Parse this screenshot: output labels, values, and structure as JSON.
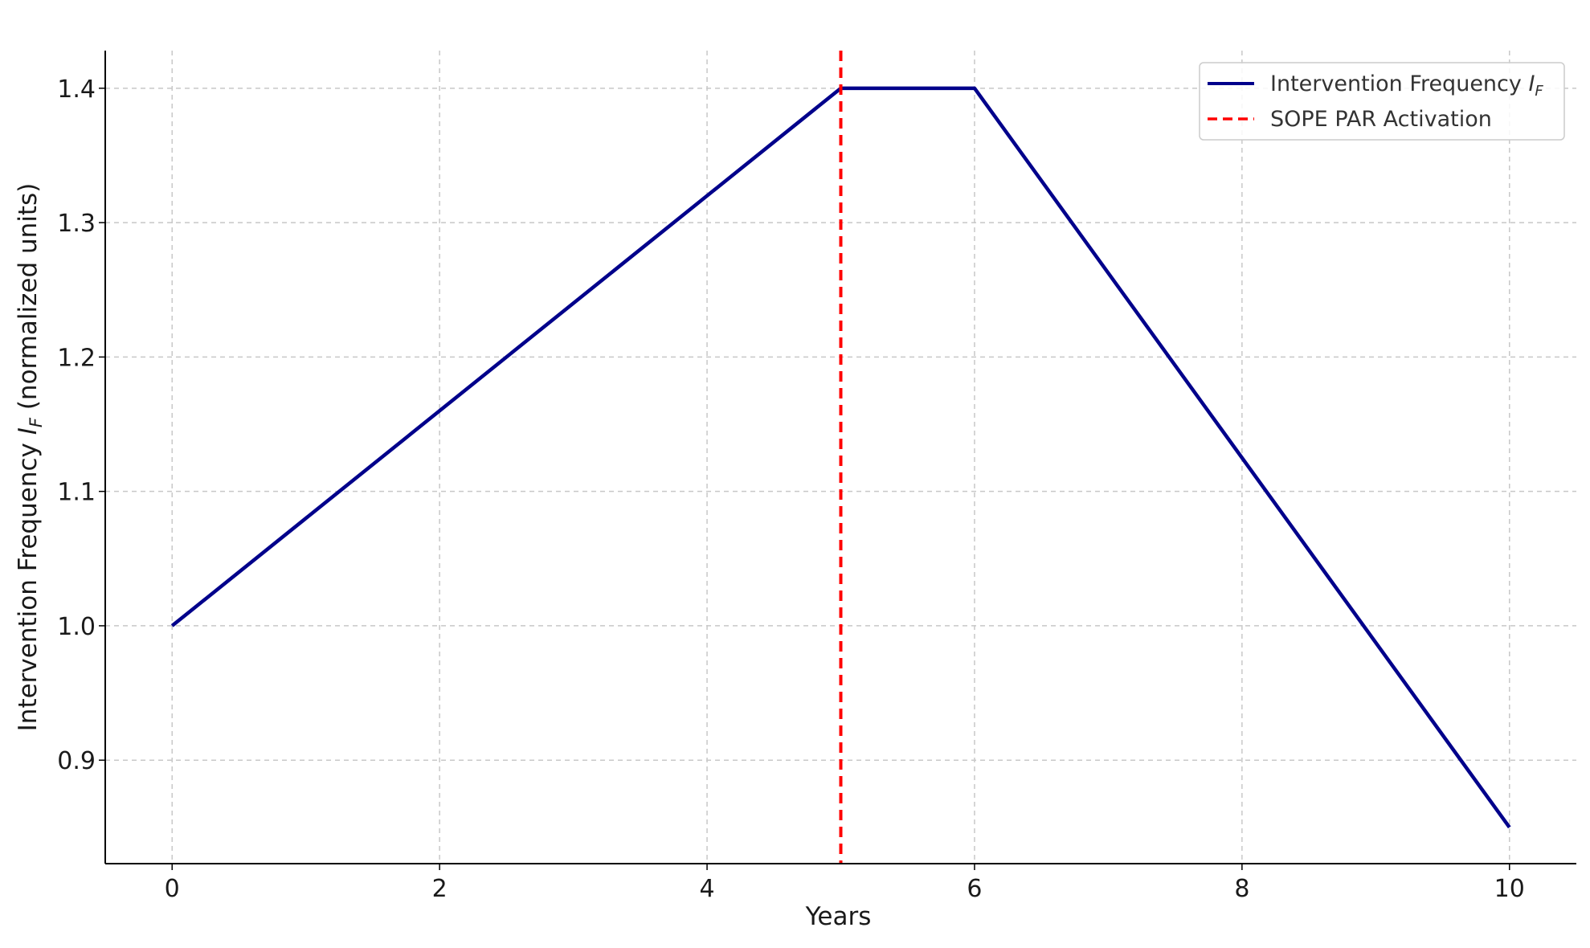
{
  "chart_data": {
    "type": "line",
    "xlabel": "Years",
    "ylabel": {
      "prefix": "Intervention Frequency ",
      "symbol": "I",
      "subscript": "F",
      "suffix": " (normalized units)"
    },
    "xlim": [
      -0.5,
      10.5
    ],
    "ylim": [
      0.823,
      1.428
    ],
    "xticks": [
      0,
      2,
      4,
      6,
      8,
      10
    ],
    "yticks": [
      0.9,
      1.0,
      1.1,
      1.2,
      1.3,
      1.4
    ],
    "xtick_labels": [
      "0",
      "2",
      "4",
      "6",
      "8",
      "10"
    ],
    "ytick_labels": [
      "0.9",
      "1.0",
      "1.1",
      "1.2",
      "1.3",
      "1.4"
    ],
    "grid": true,
    "legend_position": "top-right",
    "series": [
      {
        "name": {
          "prefix": "Intervention Frequency ",
          "symbol": "I",
          "subscript": "F"
        },
        "style": "solid",
        "color": "#00008b",
        "x": [
          0,
          5,
          6,
          10
        ],
        "y": [
          1.0,
          1.4,
          1.4,
          0.85
        ]
      }
    ],
    "vlines": [
      {
        "name": "SOPE PAR Activation",
        "x": 5,
        "style": "dashed",
        "color": "#ff0000"
      }
    ]
  }
}
